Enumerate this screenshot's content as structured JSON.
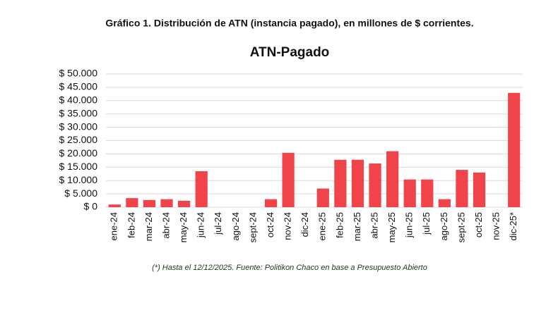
{
  "chart_data": {
    "type": "bar",
    "caption": "Gráfico 1. Distribución de ATN (instancia pagado), en millones de $ corrientes.",
    "title": "ATN-Pagado",
    "note": "(*) Hasta el 12/12/2025. Fuente: Politikon Chaco en base a Presupuesto Abierto",
    "categories": [
      "ene-24",
      "feb-24",
      "mar-24",
      "abr-24",
      "may-24",
      "jun-24",
      "jul-24",
      "ago-24",
      "sept-24",
      "oct-24",
      "nov-24",
      "dic-24",
      "ene-25",
      "feb-25",
      "mar-25",
      "abr-25",
      "may-25",
      "jun-25",
      "jul-25",
      "ago-25",
      "sept-25",
      "oct-25",
      "nov-25",
      "dic-25*"
    ],
    "values": [
      1000,
      3400,
      2700,
      3000,
      2400,
      13500,
      0,
      0,
      0,
      3000,
      20400,
      0,
      7000,
      17800,
      17800,
      16400,
      21000,
      10400,
      10400,
      3000,
      14000,
      13000,
      0,
      42900
    ],
    "color": "#f0444a",
    "ylim": [
      0,
      50000
    ],
    "yticks": [
      {
        "value": 0,
        "label": "$ 0"
      },
      {
        "value": 5000,
        "label": "$ 5.000"
      },
      {
        "value": 10000,
        "label": "$ 10.000"
      },
      {
        "value": 15000,
        "label": "$ 15.000"
      },
      {
        "value": 20000,
        "label": "$ 20.000"
      },
      {
        "value": 25000,
        "label": "$ 25.000"
      },
      {
        "value": 30000,
        "label": "$ 30.000"
      },
      {
        "value": 35000,
        "label": "$ 35.000"
      },
      {
        "value": 40000,
        "label": "$ 40.000"
      },
      {
        "value": 45000,
        "label": "$ 45.000"
      },
      {
        "value": 50000,
        "label": "$ 50.000"
      }
    ],
    "grid": true
  }
}
